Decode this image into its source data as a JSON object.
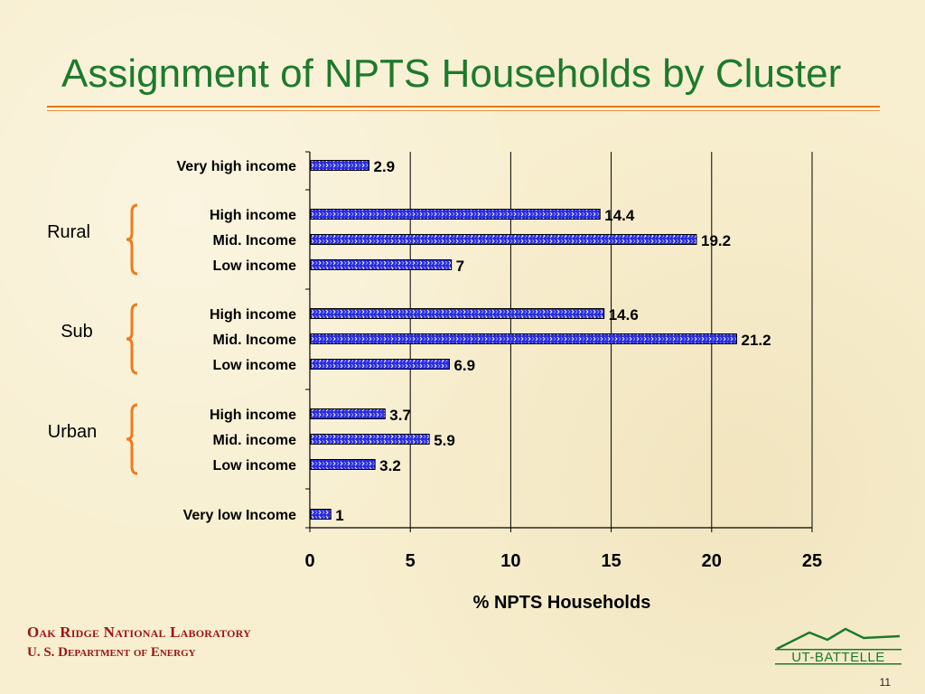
{
  "slide": {
    "title": "Assignment of NPTS Households by Cluster",
    "footer_line1": "Oak Ridge National Laboratory",
    "footer_line2": "U. S. Department of Energy",
    "logo_text": "UT-BATTELLE",
    "page_number": "11"
  },
  "colors": {
    "title": "#1d7a2c",
    "rule": "#e0781a",
    "brace": "#f07a1a",
    "bar": "#2222dd",
    "footer": "#9c1414"
  },
  "chart_data": {
    "type": "bar",
    "orientation": "horizontal",
    "title": "",
    "xlabel": "% NPTS Households",
    "ylabel": "",
    "xlim": [
      0,
      25
    ],
    "xticks": [
      0,
      5,
      10,
      15,
      20,
      25
    ],
    "grid": "vertical",
    "legend": "none",
    "categories": [
      "Very high income",
      "High income",
      "Mid. Income",
      "Low income",
      "High income",
      "Mid. Income",
      "Low income",
      "High income",
      "Mid. income",
      "Low income",
      "Very low Income"
    ],
    "values": [
      2.9,
      14.4,
      19.2,
      7,
      14.6,
      21.2,
      6.9,
      3.7,
      5.9,
      3.2,
      1
    ],
    "value_labels": [
      "2.9",
      "14.4",
      "19.2",
      "7",
      "14.6",
      "21.2",
      "6.9",
      "3.7",
      "5.9",
      "3.2",
      "1"
    ],
    "groups": [
      {
        "label": "Rural",
        "from": 1,
        "to": 3
      },
      {
        "label": "Sub",
        "from": 4,
        "to": 6
      },
      {
        "label": "Urban",
        "from": 7,
        "to": 9
      }
    ]
  }
}
